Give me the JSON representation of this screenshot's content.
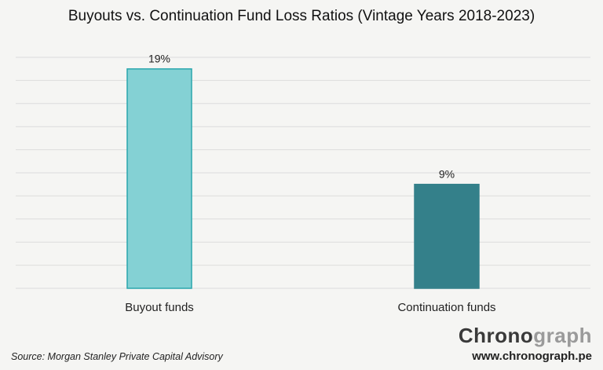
{
  "title": "Buyouts vs. Continuation Fund Loss Ratios (Vintage Years 2018-2023)",
  "source": "Source: Morgan Stanley Private Capital Advisory",
  "brand": {
    "name_dark": "Chrono",
    "name_light": "graph",
    "url": "www.chronograph.pe"
  },
  "colors": {
    "buyout": "#84d1d4",
    "buyout_border": "#2aa6ad",
    "continuation": "#34808a",
    "grid": "#dcdcdc",
    "background": "#f5f5f3"
  },
  "chart_data": {
    "type": "bar",
    "title": "Buyouts vs. Continuation Fund Loss Ratios (Vintage Years 2018-2023)",
    "categories": [
      "Buyout funds",
      "Continuation funds"
    ],
    "values": [
      19,
      9
    ],
    "value_labels": [
      "19%",
      "9%"
    ],
    "unit": "%",
    "ylim": [
      0,
      20
    ],
    "grid": true,
    "xlabel": "",
    "ylabel": ""
  }
}
